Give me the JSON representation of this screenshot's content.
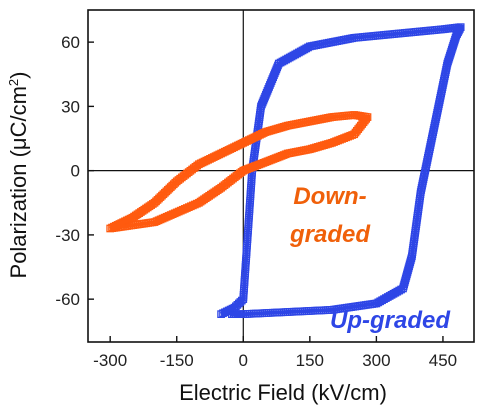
{
  "chart_data": {
    "type": "line",
    "title": "",
    "xlabel": "Electric Field (kV/cm)",
    "ylabel_main": "Polarization (μC/cm",
    "ylabel_sup": "2",
    "ylabel_close": ")",
    "xlim": [
      -350,
      520
    ],
    "ylim": [
      -80,
      75
    ],
    "xticks": [
      -300,
      -150,
      0,
      150,
      300,
      450
    ],
    "yticks": [
      60,
      30,
      0,
      -30,
      -60
    ],
    "grid": false,
    "legend": "none",
    "zero_lines": true,
    "series": [
      {
        "color": "#2E46E6",
        "marker": "square",
        "x": [
          -50,
          -20,
          0,
          10,
          20,
          40,
          80,
          150,
          250,
          350,
          450,
          490,
          480,
          460,
          440,
          420,
          400,
          380,
          360,
          300,
          200,
          100,
          0,
          -30
        ],
        "y": [
          -67,
          -64,
          -60,
          -30,
          0,
          30,
          50,
          58,
          62,
          64,
          66,
          67,
          63,
          50,
          30,
          10,
          -10,
          -40,
          -55,
          -62,
          -65,
          -66,
          -67,
          -67
        ]
      },
      {
        "color": "#FF5A0F",
        "marker": "square",
        "x": [
          -300,
          -200,
          -100,
          -50,
          0,
          50,
          100,
          150,
          200,
          250,
          280,
          250,
          200,
          150,
          100,
          50,
          0,
          -50,
          -100,
          -150,
          -200,
          -250,
          -300
        ],
        "y": [
          -27,
          -24,
          -15,
          -8,
          0,
          4,
          8,
          10,
          13,
          17,
          25,
          26,
          25,
          23,
          21,
          18,
          13,
          8,
          3,
          -5,
          -15,
          -22,
          -27
        ]
      }
    ],
    "annotations": [
      {
        "text": "Down-",
        "color": "#F0600A"
      },
      {
        "text": "graded",
        "color": "#F0600A"
      },
      {
        "text": "Up-graded",
        "color": "#2E46E6"
      }
    ]
  }
}
